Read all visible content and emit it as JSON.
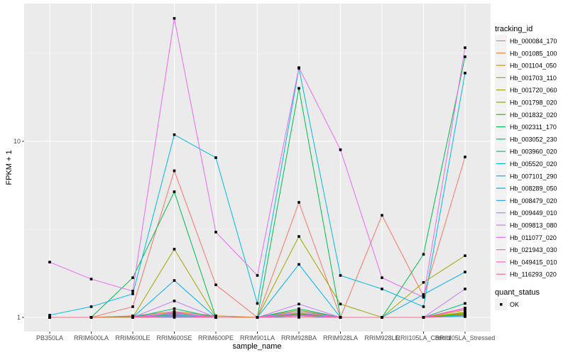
{
  "chart_data": {
    "type": "line",
    "xlabel": "sample_name",
    "ylabel": "FPKM + 1",
    "yscale": "log10",
    "ylim": [
      0.83,
      60
    ],
    "yticks": [
      1,
      10
    ],
    "grid": true,
    "legend_position": "right",
    "legend_title": "tracking_id",
    "shape_legend": {
      "title": "quant_status",
      "entries": [
        "OK"
      ]
    },
    "categories": [
      "PB350LA",
      "RRIM600LA",
      "RRIM600LE",
      "RRIM600SE",
      "RRIM600PE",
      "RRIM901LA",
      "RRIM928BA",
      "RRIM928LA",
      "RRIM928LE",
      "RRII105LA_Control",
      "RRII105LA_Stressed"
    ],
    "series": [
      {
        "name": "Hb_000084_170",
        "color": "#F8766D",
        "values": [
          1,
          1,
          1.15,
          6.8,
          1.53,
          1,
          4.5,
          1,
          3.8,
          1.32,
          8.15
        ]
      },
      {
        "name": "Hb_001085_100",
        "color": "#EA8331",
        "values": [
          1,
          1,
          1.02,
          1.08,
          1.02,
          1,
          1.06,
          1,
          1,
          1,
          1.1
        ]
      },
      {
        "name": "Hb_001104_050",
        "color": "#D89000",
        "values": [
          1,
          1,
          1,
          1.05,
          1,
          1,
          1.04,
          1,
          1,
          1,
          1.06
        ]
      },
      {
        "name": "Hb_001703_110",
        "color": "#C09B00",
        "values": [
          1,
          1,
          1,
          1.04,
          1.02,
          1,
          1.08,
          1,
          1,
          1,
          1.05
        ]
      },
      {
        "name": "Hb_001720_060",
        "color": "#A3A500",
        "values": [
          1,
          1,
          1,
          2.44,
          1,
          1,
          2.88,
          1.19,
          1,
          1.58,
          2.24
        ]
      },
      {
        "name": "Hb_001798_020",
        "color": "#7CAE00",
        "values": [
          1,
          1,
          1.01,
          1.06,
          1,
          1,
          1.1,
          1,
          1,
          1,
          1.07
        ]
      },
      {
        "name": "Hb_001832_020",
        "color": "#39B600",
        "values": [
          1,
          1,
          1,
          1.03,
          1,
          1,
          1.05,
          1,
          1,
          1,
          1.04
        ]
      },
      {
        "name": "Hb_002311_170",
        "color": "#00BB4E",
        "values": [
          1,
          1,
          1.68,
          5.17,
          1,
          1,
          20,
          1,
          1,
          2.28,
          30.2
        ]
      },
      {
        "name": "Hb_003052_230",
        "color": "#00BF7D",
        "values": [
          1,
          1,
          1,
          1.12,
          1,
          1,
          1.12,
          1,
          1,
          1,
          1.2
        ]
      },
      {
        "name": "Hb_003960_020",
        "color": "#00C1A3",
        "values": [
          1,
          1,
          1,
          1.02,
          1,
          1,
          1.03,
          1,
          1,
          1,
          1.03
        ]
      },
      {
        "name": "Hb_005520_020",
        "color": "#00BFC4",
        "values": [
          1,
          1,
          1,
          1.03,
          1,
          1,
          1.02,
          1,
          1,
          1,
          1.02
        ]
      },
      {
        "name": "Hb_007101_290",
        "color": "#00BAE0",
        "values": [
          1.03,
          1.15,
          1.36,
          10.9,
          8.07,
          1.2,
          26,
          1.73,
          1.45,
          1.15,
          24.4
        ]
      },
      {
        "name": "Hb_008289_050",
        "color": "#00B0F6",
        "values": [
          1,
          1,
          1,
          1.62,
          1,
          1,
          2.0,
          1,
          1,
          1.35,
          1.81
        ]
      },
      {
        "name": "Hb_008479_020",
        "color": "#35A2FF",
        "values": [
          1,
          1,
          1,
          1.01,
          1,
          1,
          1.02,
          1,
          1,
          1,
          1.01
        ]
      },
      {
        "name": "Hb_009449_010",
        "color": "#9590FF",
        "values": [
          1,
          1,
          1,
          1.05,
          1,
          1,
          1.06,
          1,
          1,
          1,
          1.02
        ]
      },
      {
        "name": "Hb_009813_080",
        "color": "#C77CFF",
        "values": [
          1,
          1,
          1,
          1.24,
          1,
          1,
          1.19,
          1,
          1,
          1,
          1.45
        ]
      },
      {
        "name": "Hb_011077_020",
        "color": "#E76BF3",
        "values": [
          2.06,
          1.65,
          1.41,
          49.9,
          3.05,
          1.73,
          26.2,
          8.95,
          1.68,
          1.3,
          34
        ]
      },
      {
        "name": "Hb_021943_030",
        "color": "#FA62DB",
        "values": [
          1,
          1,
          1,
          1.07,
          1,
          1,
          1.08,
          1,
          1,
          1,
          1.13
        ]
      },
      {
        "name": "Hb_049415_010",
        "color": "#FF62BC",
        "values": [
          1,
          1,
          1,
          1.02,
          1,
          1,
          1.03,
          1,
          1,
          1,
          1.12
        ]
      },
      {
        "name": "Hb_116293_020",
        "color": "#FF6C91",
        "values": [
          1,
          1,
          1,
          1,
          1,
          1,
          1,
          1,
          1,
          1,
          1.02
        ]
      }
    ]
  }
}
